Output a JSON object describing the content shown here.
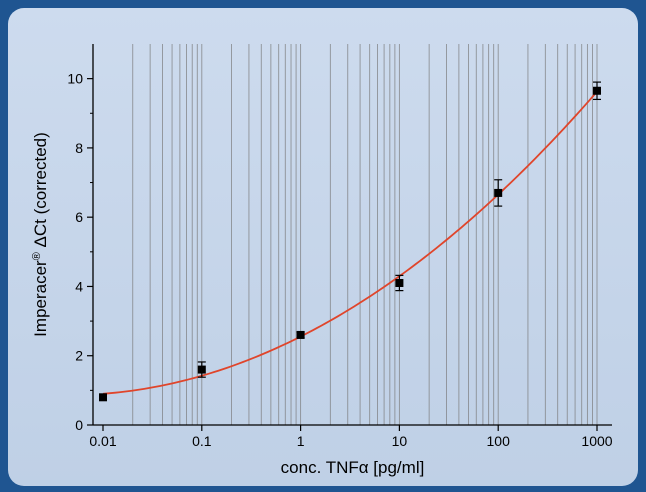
{
  "chart_data": {
    "type": "scatter",
    "xlabel": "conc. TNFα [pg/ml]",
    "ylabel_main": "Imperacer",
    "ylabel_sup": "®",
    "ylabel_rest": " ΔCt (corrected)",
    "xscale": "log",
    "xlim": [
      0.01,
      1000
    ],
    "ylim": [
      0,
      11
    ],
    "x_ticks": [
      {
        "value": 0.01,
        "label": "0.01"
      },
      {
        "value": 0.1,
        "label": "0.1"
      },
      {
        "value": 1,
        "label": "1"
      },
      {
        "value": 10,
        "label": "10"
      },
      {
        "value": 100,
        "label": "100"
      },
      {
        "value": 1000,
        "label": "1000"
      }
    ],
    "y_ticks": [
      {
        "value": 0,
        "label": "0"
      },
      {
        "value": 2,
        "label": "2"
      },
      {
        "value": 4,
        "label": "4"
      },
      {
        "value": 6,
        "label": "6"
      },
      {
        "value": 8,
        "label": "8"
      },
      {
        "value": 10,
        "label": "10"
      }
    ],
    "grid": "vertical log-spaced gridlines",
    "points": [
      {
        "x": 0.01,
        "y": 0.8,
        "err": 0.08
      },
      {
        "x": 0.1,
        "y": 1.6,
        "err": 0.22
      },
      {
        "x": 1,
        "y": 2.6,
        "err": 0.08
      },
      {
        "x": 10,
        "y": 4.1,
        "err": 0.22
      },
      {
        "x": 100,
        "y": 6.7,
        "err": 0.38
      },
      {
        "x": 1000,
        "y": 9.65,
        "err": 0.25
      }
    ],
    "fit_curve": {
      "color": "#e0452b"
    },
    "colors": {
      "panel_border": "#1f5591",
      "gridline": "#7a7a7a",
      "marker": "#000000"
    }
  }
}
